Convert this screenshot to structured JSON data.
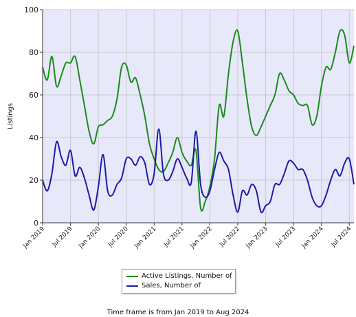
{
  "chart_data": {
    "type": "line",
    "title": "",
    "xlabel": "",
    "ylabel": "Listings",
    "ylim": [
      0,
      100
    ],
    "yticks": [
      "0",
      "20",
      "40",
      "60",
      "80",
      "100"
    ],
    "xticks": [
      "Jan 2019",
      "Jul 2019",
      "Jan 2020",
      "Jul 2020",
      "Jan 2021",
      "Jul 2021",
      "Jan 2022",
      "Jul 2022",
      "Jan 2023",
      "Jul 2023",
      "Jan 2024",
      "Jul 2024"
    ],
    "grid": true,
    "legend_position": "bottom-center",
    "background_color": "#e8e8fb",
    "x": [
      "2019-01",
      "2019-02",
      "2019-03",
      "2019-04",
      "2019-05",
      "2019-06",
      "2019-07",
      "2019-08",
      "2019-09",
      "2019-10",
      "2019-11",
      "2019-12",
      "2020-01",
      "2020-02",
      "2020-03",
      "2020-04",
      "2020-05",
      "2020-06",
      "2020-07",
      "2020-08",
      "2020-09",
      "2020-10",
      "2020-11",
      "2020-12",
      "2021-01",
      "2021-02",
      "2021-03",
      "2021-04",
      "2021-05",
      "2021-06",
      "2021-07",
      "2021-08",
      "2021-09",
      "2021-10",
      "2021-11",
      "2021-12",
      "2022-01",
      "2022-02",
      "2022-03",
      "2022-04",
      "2022-05",
      "2022-06",
      "2022-07",
      "2022-08",
      "2022-09",
      "2022-10",
      "2022-11",
      "2022-12",
      "2023-01",
      "2023-02",
      "2023-03",
      "2023-04",
      "2023-05",
      "2023-06",
      "2023-07",
      "2023-08",
      "2023-09",
      "2023-10",
      "2023-11",
      "2023-12",
      "2024-01",
      "2024-02",
      "2024-03",
      "2024-04",
      "2024-05",
      "2024-06",
      "2024-07",
      "2024-08"
    ],
    "series": [
      {
        "name": "Active Listings, Number of",
        "color": "#1a8a1a",
        "values": [
          73,
          67,
          78,
          64,
          69,
          75,
          75,
          78,
          67,
          55,
          43,
          37,
          45,
          46,
          48,
          50,
          58,
          73,
          74,
          66,
          68,
          60,
          50,
          37,
          30,
          25,
          24,
          28,
          33,
          40,
          33,
          29,
          27,
          34,
          7,
          10,
          17,
          30,
          55,
          50,
          70,
          85,
          90,
          75,
          58,
          45,
          41,
          45,
          50,
          55,
          60,
          70,
          67,
          62,
          60,
          56,
          55,
          55,
          46,
          50,
          64,
          73,
          72,
          80,
          90,
          88,
          75,
          83
        ]
      },
      {
        "name": "Sales, Number of",
        "color": "#1a1aa8",
        "values": [
          20,
          15,
          23,
          38,
          31,
          27,
          34,
          22,
          26,
          21,
          13,
          6,
          17,
          32,
          15,
          13,
          18,
          21,
          30,
          30,
          27,
          31,
          28,
          18,
          23,
          44,
          23,
          20,
          24,
          30,
          26,
          21,
          19,
          43,
          18,
          12,
          15,
          25,
          33,
          29,
          25,
          13,
          5,
          15,
          13,
          18,
          15,
          5,
          8,
          10,
          18,
          18,
          23,
          29,
          28,
          25,
          25,
          20,
          12,
          8,
          8,
          13,
          20,
          25,
          22,
          28,
          30,
          18
        ]
      }
    ],
    "footnote": "Time frame is from Jan 2019 to Aug 2024"
  }
}
